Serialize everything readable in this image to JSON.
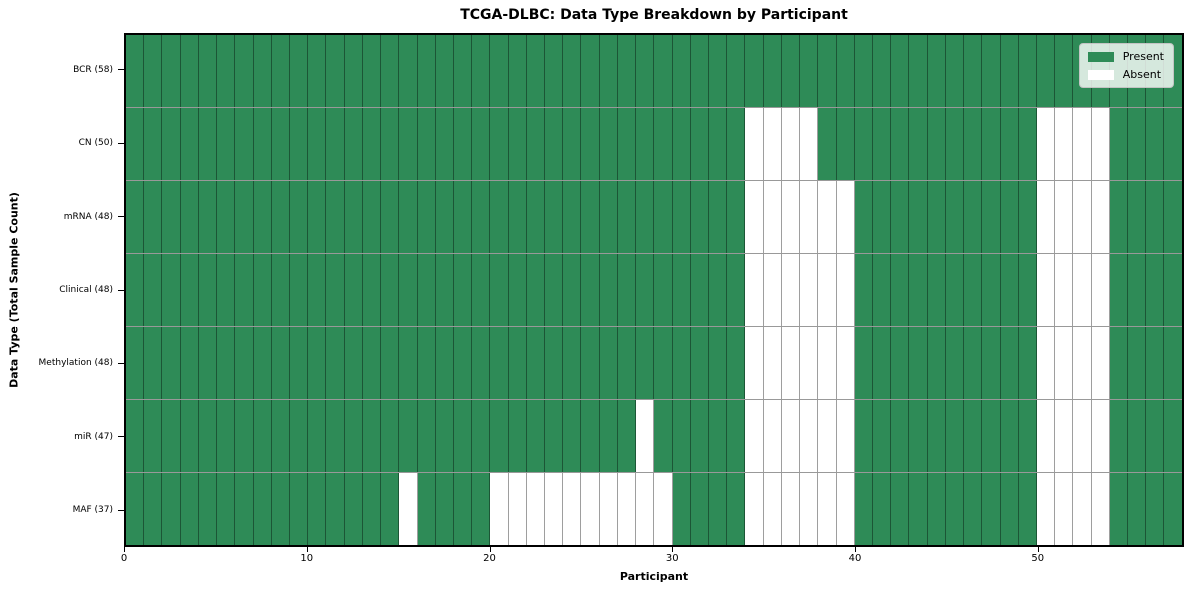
{
  "title": "TCGA-DLBC: Data Type Breakdown by Participant",
  "x_axis": {
    "label": "Participant"
  },
  "y_axis": {
    "label": "Data Type (Total Sample Count)"
  },
  "legend": {
    "present_label": "Present",
    "absent_label": "Absent"
  },
  "chart_data": {
    "type": "heatmap",
    "title": "TCGA-DLBC: Data Type Breakdown by Participant",
    "xlabel": "Participant",
    "ylabel": "Data Type (Total Sample Count)",
    "x_range": [
      0,
      58
    ],
    "n_participants": 58,
    "x_ticks": [
      0,
      10,
      20,
      30,
      40,
      50
    ],
    "grid": true,
    "legend_position": "upper right",
    "colors": {
      "present": "#2e8b57",
      "absent": "#ffffff",
      "grid_line": "rgba(0,0,0,0.38)"
    },
    "cell_states": [
      "Present",
      "Absent"
    ],
    "rows": [
      {
        "name": "BCR",
        "label": "BCR (58)",
        "present_count": 58,
        "absent_participants": []
      },
      {
        "name": "CN",
        "label": "CN (50)",
        "present_count": 50,
        "absent_participants": [
          34,
          35,
          36,
          37,
          50,
          51,
          52,
          53
        ]
      },
      {
        "name": "mRNA",
        "label": "mRNA (48)",
        "present_count": 48,
        "absent_participants": [
          34,
          35,
          36,
          37,
          38,
          39,
          50,
          51,
          52,
          53
        ]
      },
      {
        "name": "Clinical",
        "label": "Clinical (48)",
        "present_count": 48,
        "absent_participants": [
          34,
          35,
          36,
          37,
          38,
          39,
          50,
          51,
          52,
          53
        ]
      },
      {
        "name": "Methylation",
        "label": "Methylation (48)",
        "present_count": 48,
        "absent_participants": [
          34,
          35,
          36,
          37,
          38,
          39,
          50,
          51,
          52,
          53
        ]
      },
      {
        "name": "miR",
        "label": "miR (47)",
        "present_count": 47,
        "absent_participants": [
          28,
          34,
          35,
          36,
          37,
          38,
          39,
          50,
          51,
          52,
          53
        ]
      },
      {
        "name": "MAF",
        "label": "MAF (37)",
        "present_count": 37,
        "absent_participants": [
          15,
          20,
          21,
          22,
          23,
          24,
          25,
          26,
          27,
          28,
          29,
          34,
          35,
          36,
          37,
          38,
          39,
          50,
          51,
          52,
          53
        ]
      }
    ]
  }
}
